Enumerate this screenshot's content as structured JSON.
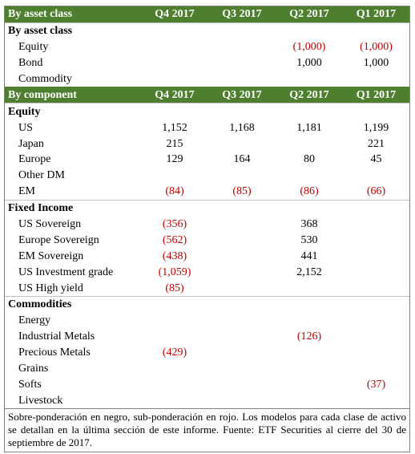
{
  "rows": [
    {
      "kind": "header",
      "label": "By asset class",
      "cells": [
        "Q4 2017",
        "Q3 2017",
        "Q2 2017",
        "Q1 2017"
      ]
    },
    {
      "kind": "section",
      "label": "By asset class"
    },
    {
      "kind": "item",
      "label": "Equity",
      "cells": [
        null,
        null,
        "(1,000)",
        "(1,000)"
      ]
    },
    {
      "kind": "item",
      "label": "Bond",
      "cells": [
        null,
        null,
        "1,000",
        "1,000"
      ]
    },
    {
      "kind": "item",
      "label": "Commodity",
      "cells": [
        null,
        null,
        null,
        null
      ]
    },
    {
      "kind": "header",
      "label": "By component",
      "cells": [
        "Q4 2017",
        "Q3 2017",
        "Q2 2017",
        "Q1 2017"
      ]
    },
    {
      "kind": "section",
      "label": "Equity"
    },
    {
      "kind": "item",
      "label": "US",
      "cells": [
        "1,152",
        "1,168",
        "1,181",
        "1,199"
      ]
    },
    {
      "kind": "item",
      "label": "Japan",
      "cells": [
        "215",
        null,
        null,
        "221"
      ]
    },
    {
      "kind": "item",
      "label": "Europe",
      "cells": [
        "129",
        "164",
        "80",
        "45"
      ]
    },
    {
      "kind": "item",
      "label": "Other DM",
      "cells": [
        null,
        null,
        null,
        null
      ]
    },
    {
      "kind": "item",
      "label": "EM",
      "cells": [
        "(84)",
        "(85)",
        "(86)",
        "(66)"
      ]
    },
    {
      "kind": "section",
      "label": "Fixed Income"
    },
    {
      "kind": "item",
      "label": "US Sovereign",
      "cells": [
        "(356)",
        null,
        "368",
        null
      ]
    },
    {
      "kind": "item",
      "label": "Europe Sovereign",
      "cells": [
        "(562)",
        null,
        "530",
        null
      ]
    },
    {
      "kind": "item",
      "label": "EM Sovereign",
      "cells": [
        "(438)",
        null,
        "441",
        null
      ]
    },
    {
      "kind": "item",
      "label": "US Investment grade",
      "cells": [
        "(1,059)",
        null,
        "2,152",
        null
      ]
    },
    {
      "kind": "item",
      "label": "US High yield",
      "cells": [
        "(85)",
        null,
        null,
        null
      ]
    },
    {
      "kind": "section",
      "label": "Commodities"
    },
    {
      "kind": "item",
      "label": "Energy",
      "cells": [
        null,
        null,
        null,
        null
      ]
    },
    {
      "kind": "item",
      "label": "Industrial Metals",
      "cells": [
        null,
        null,
        "(126)",
        null
      ]
    },
    {
      "kind": "item",
      "label": "Precious Metals",
      "cells": [
        "(429)",
        null,
        null,
        null
      ]
    },
    {
      "kind": "item",
      "label": "Grains",
      "cells": [
        null,
        null,
        null,
        null
      ]
    },
    {
      "kind": "item",
      "label": "Softs",
      "cells": [
        null,
        null,
        null,
        "(37)"
      ]
    },
    {
      "kind": "item",
      "label": "Livestock",
      "cells": [
        null,
        null,
        null,
        null
      ]
    }
  ],
  "footnote": "Sobre-ponderación en negro, sub-ponderación en rojo. Los modelos para cada clase de activo se detallan en la última sección de este informe. Fuente: ETF Securities al cierre del 30 de septiembre de 2017."
}
